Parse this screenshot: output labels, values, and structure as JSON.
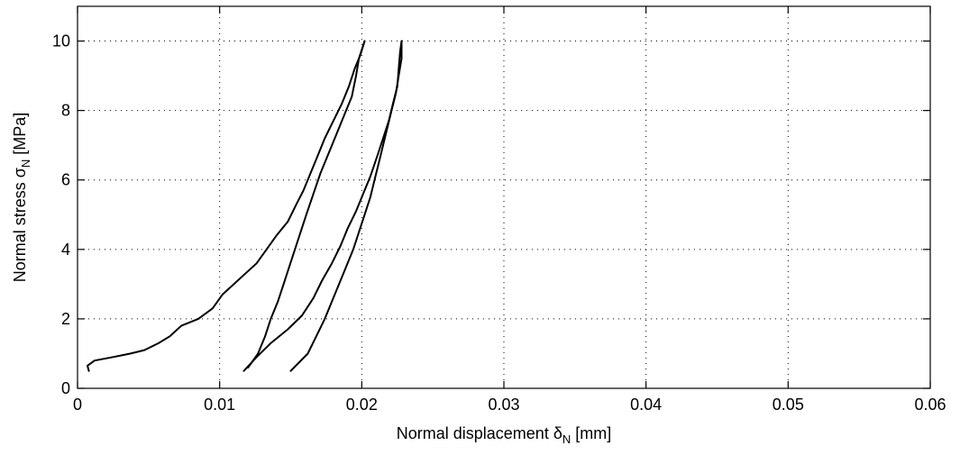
{
  "chart_data": {
    "type": "line",
    "title": "",
    "xlabel": {
      "main": "Normal displacement ",
      "sym": "δ",
      "sub": "N",
      "unit": " [mm]"
    },
    "ylabel": {
      "main": "Normal stress ",
      "sym": "σ",
      "sub": "N",
      "unit": " [MPa]"
    },
    "xlim": [
      0,
      0.06
    ],
    "ylim": [
      0,
      11
    ],
    "xticks": [
      0,
      0.01,
      0.02,
      0.03,
      0.04,
      0.05,
      0.06
    ],
    "xtick_labels": [
      "0",
      "0.01",
      "0.02",
      "0.03",
      "0.04",
      "0.05",
      "0.06"
    ],
    "yticks": [
      0,
      2,
      4,
      6,
      8,
      10
    ],
    "ytick_labels": [
      "0",
      "2",
      "4",
      "6",
      "8",
      "10"
    ],
    "grid": true,
    "series": [
      {
        "values": [
          [
            0.0008,
            0.5
          ],
          [
            0.0007,
            0.65
          ],
          [
            0.0012,
            0.8
          ],
          [
            0.0025,
            0.9
          ],
          [
            0.0037,
            1.0
          ],
          [
            0.0047,
            1.1
          ],
          [
            0.0057,
            1.3
          ],
          [
            0.0065,
            1.5
          ],
          [
            0.0073,
            1.8
          ],
          [
            0.0085,
            2.0
          ],
          [
            0.0095,
            2.3
          ],
          [
            0.0102,
            2.7
          ],
          [
            0.011,
            3.0
          ],
          [
            0.0118,
            3.3
          ],
          [
            0.0126,
            3.6
          ],
          [
            0.0133,
            4.0
          ],
          [
            0.014,
            4.4
          ],
          [
            0.0148,
            4.8
          ],
          [
            0.0154,
            5.3
          ],
          [
            0.0159,
            5.7
          ],
          [
            0.0164,
            6.2
          ],
          [
            0.0169,
            6.7
          ],
          [
            0.0174,
            7.2
          ],
          [
            0.018,
            7.7
          ],
          [
            0.0186,
            8.2
          ],
          [
            0.0191,
            8.7
          ],
          [
            0.0195,
            9.2
          ],
          [
            0.0199,
            9.6
          ],
          [
            0.0202,
            10.0
          ]
        ]
      },
      {
        "values": [
          [
            0.0202,
            10.0
          ],
          [
            0.0198,
            9.5
          ],
          [
            0.0196,
            9.0
          ],
          [
            0.0193,
            8.4
          ],
          [
            0.0188,
            7.9
          ],
          [
            0.0182,
            7.3
          ],
          [
            0.0177,
            6.8
          ],
          [
            0.0171,
            6.2
          ],
          [
            0.0166,
            5.6
          ],
          [
            0.0161,
            5.0
          ],
          [
            0.0157,
            4.5
          ],
          [
            0.0153,
            4.0
          ],
          [
            0.0149,
            3.5
          ],
          [
            0.0145,
            3.0
          ],
          [
            0.0141,
            2.5
          ],
          [
            0.0136,
            2.0
          ],
          [
            0.0132,
            1.5
          ],
          [
            0.0127,
            1.0
          ],
          [
            0.012,
            0.6
          ]
        ]
      },
      {
        "values": [
          [
            0.0117,
            0.5
          ],
          [
            0.0126,
            0.9
          ],
          [
            0.0136,
            1.3
          ],
          [
            0.0148,
            1.7
          ],
          [
            0.0158,
            2.1
          ],
          [
            0.0166,
            2.6
          ],
          [
            0.0172,
            3.1
          ],
          [
            0.0179,
            3.6
          ],
          [
            0.0185,
            4.1
          ],
          [
            0.019,
            4.6
          ],
          [
            0.0196,
            5.1
          ],
          [
            0.0201,
            5.6
          ],
          [
            0.0206,
            6.1
          ],
          [
            0.0211,
            6.7
          ],
          [
            0.0215,
            7.2
          ],
          [
            0.0219,
            7.7
          ],
          [
            0.0222,
            8.2
          ],
          [
            0.0225,
            8.7
          ],
          [
            0.0226,
            9.2
          ],
          [
            0.0227,
            9.7
          ],
          [
            0.0228,
            10.0
          ]
        ]
      },
      {
        "values": [
          [
            0.0228,
            10.0
          ],
          [
            0.0228,
            9.5
          ],
          [
            0.0226,
            9.0
          ],
          [
            0.0224,
            8.5
          ],
          [
            0.0221,
            8.0
          ],
          [
            0.0218,
            7.5
          ],
          [
            0.0215,
            7.0
          ],
          [
            0.0212,
            6.5
          ],
          [
            0.0209,
            6.0
          ],
          [
            0.0206,
            5.5
          ],
          [
            0.0202,
            5.0
          ],
          [
            0.0198,
            4.5
          ],
          [
            0.0194,
            4.0
          ],
          [
            0.0189,
            3.5
          ],
          [
            0.0184,
            3.0
          ],
          [
            0.0179,
            2.5
          ],
          [
            0.0174,
            2.0
          ],
          [
            0.0168,
            1.5
          ],
          [
            0.0162,
            1.0
          ],
          [
            0.015,
            0.5
          ]
        ]
      }
    ]
  }
}
